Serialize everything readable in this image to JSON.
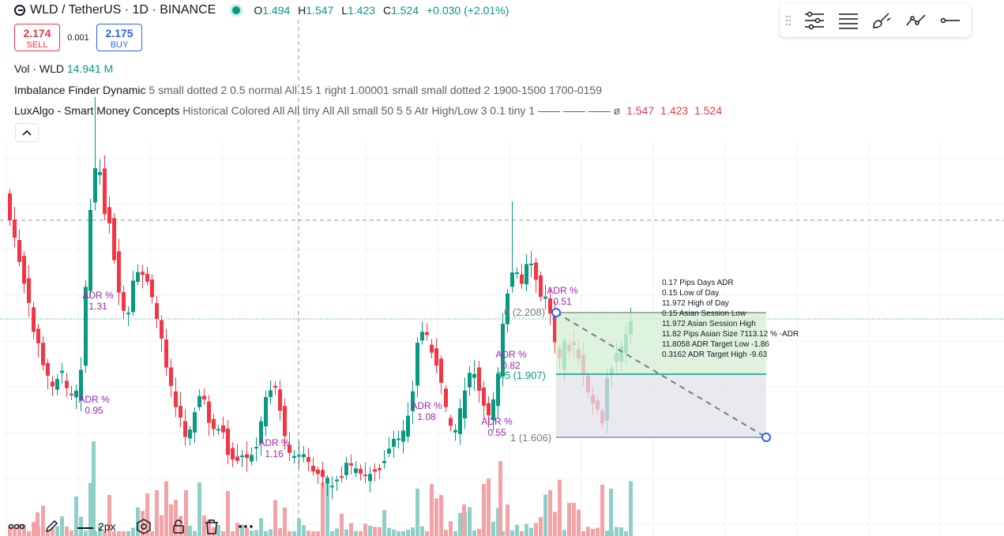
{
  "header": {
    "symbol": "WLD / TetherUS · 1D · BINANCE",
    "ohlc": {
      "o_label": "O",
      "o": "1.494",
      "h_label": "H",
      "h": "1.547",
      "l_label": "L",
      "l": "1.423",
      "c_label": "C",
      "c": "1.524",
      "change": "+0.030 (+2.01%)"
    }
  },
  "trade": {
    "sell_price": "2.174",
    "sell_label": "SELL",
    "spread": "0.001",
    "buy_price": "2.175",
    "buy_label": "BUY"
  },
  "indicators": {
    "vol": {
      "name": "Vol · WLD",
      "value": "14.941 M"
    },
    "imbalance": {
      "name": "Imbalance Finder Dynamic",
      "args": "5 small dotted 2 0.5 normal All 15 1 right 1.00001 small small dotted 2 1900-1500 1700-0159"
    },
    "luxalgo": {
      "name": "LuxAlgo - Smart Money Concepts",
      "args": "Historical Colored All All tiny All All small 50 5 5 Atr High/Low 3 0.1 tiny 1 —— —— ——  ø",
      "v1": "1.547",
      "v2": "1.423",
      "v3": "1.524"
    }
  },
  "toolbar": {
    "icons": [
      "drag-grip-icon",
      "settings-lines-icon",
      "list-lines-icon",
      "brush-icon",
      "trend-line-icon",
      "horizontal-ray-icon"
    ]
  },
  "bottom_toolbar": {
    "width_label": "2px",
    "icons": [
      "template-icon",
      "pencil-icon",
      "line-width-icon",
      "settings-gear-icon",
      "lock-icon",
      "trash-icon",
      "more-icon"
    ]
  },
  "colors": {
    "up": "#089981",
    "down": "#f23645",
    "up_vol": "#8fd0c6",
    "down_vol": "#f3a3a6",
    "adr": "#9c27b0",
    "fib_green": "#089981"
  },
  "chart_data": {
    "type": "candlestick",
    "adr_labels": [
      {
        "label": "ADR %",
        "value": "1.31"
      },
      {
        "label": "ADR %",
        "value": "0.95"
      },
      {
        "label": "ADR %",
        "value": "1.16"
      },
      {
        "label": "ADR %",
        "value": "1.08"
      },
      {
        "label": "ADR %",
        "value": "0.82"
      },
      {
        "label": "ADR %",
        "value": "0.55"
      },
      {
        "label": "ADR %",
        "value": "0.51"
      }
    ],
    "fib_levels": [
      {
        "label": "0 (2.208)",
        "price": 2.208
      },
      {
        "label": "0.5 (1.907)",
        "price": 1.907
      },
      {
        "label": "1 (1.606)",
        "price": 1.606
      }
    ],
    "session_stats": [
      "0.17 Pips Days ADR",
      "0.15 Low of Day",
      "11.972 High of Day",
      "0.15 Asian Session Low",
      "11.972 Asian Session High",
      "11.82 Pips Asian Size 7113.12 % -ADR",
      "11.8058 ADR Target Low -1.86",
      "0.3162 ADR Target High -9.63"
    ]
  }
}
